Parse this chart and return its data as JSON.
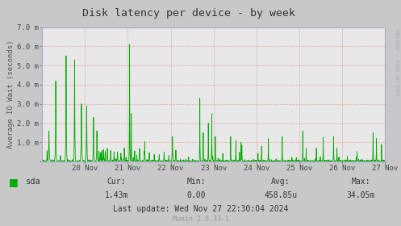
{
  "title": "Disk latency per device - by week",
  "ylabel": "Average IO Wait (seconds)",
  "background_color": "#c8c8c8",
  "plot_bg_color": "#e8e8e8",
  "line_color": "#00aa00",
  "ytick_labels": [
    "",
    "1.0 m",
    "2.0 m",
    "3.0 m",
    "4.0 m",
    "5.0 m",
    "6.0 m",
    "7.0 m"
  ],
  "yticks": [
    0,
    0.001,
    0.002,
    0.003,
    0.004,
    0.005,
    0.006,
    0.007
  ],
  "xtick_labels": [
    "20 Nov",
    "21 Nov",
    "22 Nov",
    "23 Nov",
    "24 Nov",
    "25 Nov",
    "26 Nov",
    "27 Nov"
  ],
  "cur": "1.43m",
  "min_val": "0.00",
  "avg_val": "458.85u",
  "max_val": "34.05m",
  "legend_label": "sda",
  "footer": "Munin 2.0.33-1",
  "last_update": "Last update: Wed Nov 27 22:30:04 2024",
  "right_label": "RRDTOOL / TOBI OETIKER",
  "ylim": [
    0,
    0.007
  ],
  "n_points": 2016
}
